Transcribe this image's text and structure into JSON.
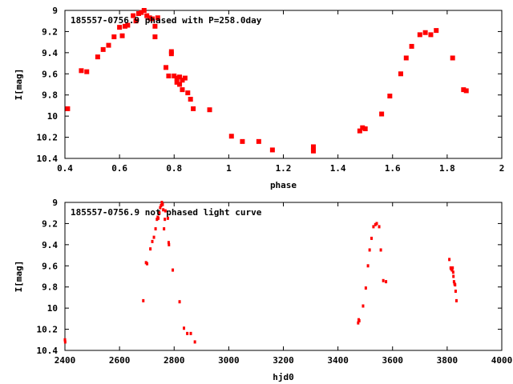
{
  "colors": {
    "points": "#ff0000",
    "axis": "#000000",
    "background": "#ffffff"
  },
  "chart_data": [
    {
      "type": "scatter",
      "title": "185557-0756.9 phased with P=258.0day",
      "xlabel": "phase",
      "ylabel": "I[mag]",
      "xlim": [
        0.4,
        2.0
      ],
      "ylim": [
        9.0,
        10.4
      ],
      "y_inverted": true,
      "grid": false,
      "x_ticks": [
        "0.4",
        "0.6",
        "0.8",
        "1",
        "1.2",
        "1.4",
        "1.6",
        "1.8",
        "2"
      ],
      "y_ticks": [
        "9",
        "9.2",
        "9.4",
        "9.6",
        "9.8",
        "10",
        "10.2",
        "10.4"
      ],
      "series": [
        {
          "points": [
            [
              0.41,
              9.93
            ],
            [
              0.46,
              9.57
            ],
            [
              0.48,
              9.58
            ],
            [
              0.52,
              9.44
            ],
            [
              0.54,
              9.37
            ],
            [
              0.56,
              9.33
            ],
            [
              0.58,
              9.25
            ],
            [
              0.6,
              9.16
            ],
            [
              0.61,
              9.24
            ],
            [
              0.62,
              9.15
            ],
            [
              0.63,
              9.14
            ],
            [
              0.65,
              9.05
            ],
            [
              0.66,
              9.1
            ],
            [
              0.67,
              9.03
            ],
            [
              0.68,
              9.02
            ],
            [
              0.69,
              9.0
            ],
            [
              0.7,
              9.05
            ],
            [
              0.71,
              9.07
            ],
            [
              0.72,
              9.08
            ],
            [
              0.73,
              9.15
            ],
            [
              0.73,
              9.25
            ],
            [
              0.74,
              9.07
            ],
            [
              0.77,
              9.54
            ],
            [
              0.78,
              9.62
            ],
            [
              0.79,
              9.39
            ],
            [
              0.79,
              9.41
            ],
            [
              0.8,
              9.62
            ],
            [
              0.81,
              9.64
            ],
            [
              0.81,
              9.68
            ],
            [
              0.82,
              9.63
            ],
            [
              0.82,
              9.7
            ],
            [
              0.83,
              9.66
            ],
            [
              0.83,
              9.75
            ],
            [
              0.84,
              9.64
            ],
            [
              0.85,
              9.78
            ],
            [
              0.86,
              9.84
            ],
            [
              0.87,
              9.93
            ],
            [
              0.93,
              9.94
            ],
            [
              1.01,
              10.19
            ],
            [
              1.05,
              10.24
            ],
            [
              1.11,
              10.24
            ],
            [
              1.16,
              10.32
            ],
            [
              1.31,
              10.29
            ],
            [
              1.31,
              10.32
            ],
            [
              1.31,
              10.33
            ],
            [
              1.48,
              10.14
            ],
            [
              1.49,
              10.11
            ],
            [
              1.5,
              10.12
            ],
            [
              1.56,
              9.98
            ],
            [
              1.59,
              9.81
            ],
            [
              1.63,
              9.6
            ],
            [
              1.65,
              9.45
            ],
            [
              1.67,
              9.34
            ],
            [
              1.7,
              9.23
            ],
            [
              1.72,
              9.21
            ],
            [
              1.74,
              9.23
            ],
            [
              1.76,
              9.19
            ],
            [
              1.82,
              9.45
            ],
            [
              1.86,
              9.75
            ],
            [
              1.87,
              9.76
            ]
          ]
        }
      ]
    },
    {
      "type": "scatter",
      "title": "185557-0756.9 not phased light curve",
      "xlabel": "hjd0",
      "ylabel": "I[mag]",
      "xlim": [
        2400,
        4000
      ],
      "ylim": [
        9.0,
        10.4
      ],
      "y_inverted": true,
      "grid": false,
      "x_ticks": [
        "2400",
        "2600",
        "2800",
        "3000",
        "3200",
        "3400",
        "3600",
        "3800",
        "4000"
      ],
      "y_ticks": [
        "9",
        "9.2",
        "9.4",
        "9.6",
        "9.8",
        "10",
        "10.2",
        "10.4"
      ],
      "series": [
        {
          "points": [
            [
              2400,
              10.3
            ],
            [
              2401,
              10.32
            ],
            [
              2687,
              9.93
            ],
            [
              2697,
              9.57
            ],
            [
              2701,
              9.58
            ],
            [
              2713,
              9.44
            ],
            [
              2720,
              9.37
            ],
            [
              2726,
              9.33
            ],
            [
              2732,
              9.25
            ],
            [
              2737,
              9.16
            ],
            [
              2740,
              9.14
            ],
            [
              2742,
              9.15
            ],
            [
              2746,
              9.1
            ],
            [
              2749,
              9.05
            ],
            [
              2752,
              9.03
            ],
            [
              2755,
              9.0
            ],
            [
              2758,
              9.02
            ],
            [
              2760,
              9.07
            ],
            [
              2763,
              9.25
            ],
            [
              2766,
              9.16
            ],
            [
              2768,
              9.08
            ],
            [
              2777,
              9.15
            ],
            [
              2780,
              9.38
            ],
            [
              2781,
              9.4
            ],
            [
              2795,
              9.64
            ],
            [
              2820,
              9.94
            ],
            [
              2836,
              10.19
            ],
            [
              2848,
              10.24
            ],
            [
              2861,
              10.24
            ],
            [
              2876,
              10.32
            ],
            [
              3474,
              10.14
            ],
            [
              3476,
              10.11
            ],
            [
              3478,
              10.12
            ],
            [
              3492,
              9.98
            ],
            [
              3502,
              9.81
            ],
            [
              3510,
              9.6
            ],
            [
              3516,
              9.45
            ],
            [
              3523,
              9.34
            ],
            [
              3530,
              9.23
            ],
            [
              3537,
              9.21
            ],
            [
              3542,
              9.2
            ],
            [
              3551,
              9.23
            ],
            [
              3557,
              9.45
            ],
            [
              3566,
              9.74
            ],
            [
              3576,
              9.75
            ],
            [
              3808,
              9.54
            ],
            [
              3813,
              9.62
            ],
            [
              3815,
              9.63
            ],
            [
              3818,
              9.64
            ],
            [
              3820,
              9.62
            ],
            [
              3822,
              9.66
            ],
            [
              3823,
              9.7
            ],
            [
              3825,
              9.75
            ],
            [
              3827,
              9.77
            ],
            [
              3829,
              9.78
            ],
            [
              3831,
              9.84
            ],
            [
              3834,
              9.93
            ]
          ]
        }
      ]
    }
  ]
}
